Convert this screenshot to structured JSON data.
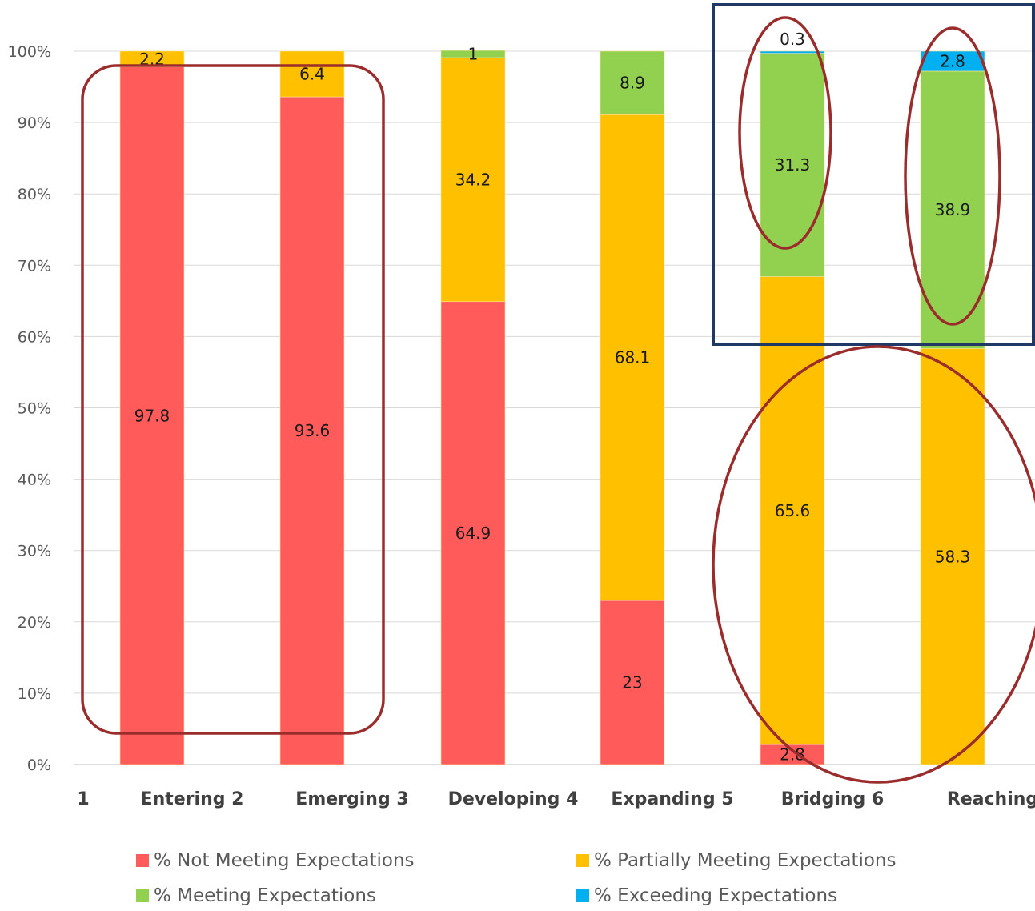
{
  "chart_data": {
    "type": "bar",
    "stacked": true,
    "categories": [
      "Entering 2",
      "Emerging 3",
      "Developing 4",
      "Expanding 5",
      "Bridging 6",
      "Reaching"
    ],
    "extra_axis_label": "1",
    "series": [
      {
        "name": "% Not Meeting Expectations",
        "color": "#ff5b5b",
        "values": [
          97.8,
          93.6,
          64.9,
          23,
          2.8,
          0
        ]
      },
      {
        "name": "% Partially Meeting Expectations",
        "color": "#ffc000",
        "values": [
          2.2,
          6.4,
          34.2,
          68.1,
          65.6,
          58.3
        ]
      },
      {
        "name": "% Meeting Expectations",
        "color": "#92d050",
        "values": [
          0,
          0,
          1,
          8.9,
          31.3,
          38.9
        ]
      },
      {
        "name": "% Exceeding Expectations",
        "color": "#00b0f0",
        "values": [
          0,
          0,
          0,
          0,
          0.3,
          2.8
        ]
      }
    ],
    "data_labels": [
      [
        "97.8",
        "2.2",
        "",
        ""
      ],
      [
        "93.6",
        "6.4",
        "",
        ""
      ],
      [
        "64.9",
        "34.2",
        "1",
        ""
      ],
      [
        "23",
        "68.1",
        "8.9",
        ""
      ],
      [
        "2.8",
        "65.6",
        "31.3",
        "0.3"
      ],
      [
        "",
        "58.3",
        "38.9",
        "2.8"
      ]
    ],
    "yticks": [
      "0%",
      "10%",
      "20%",
      "30%",
      "40%",
      "50%",
      "60%",
      "70%",
      "80%",
      "90%",
      "100%"
    ],
    "ylim": [
      0,
      100
    ],
    "grid": true,
    "legend_position": "bottom",
    "annotation_colors": {
      "ellipse": "#9b2c2c",
      "box": "#1f3864"
    }
  }
}
